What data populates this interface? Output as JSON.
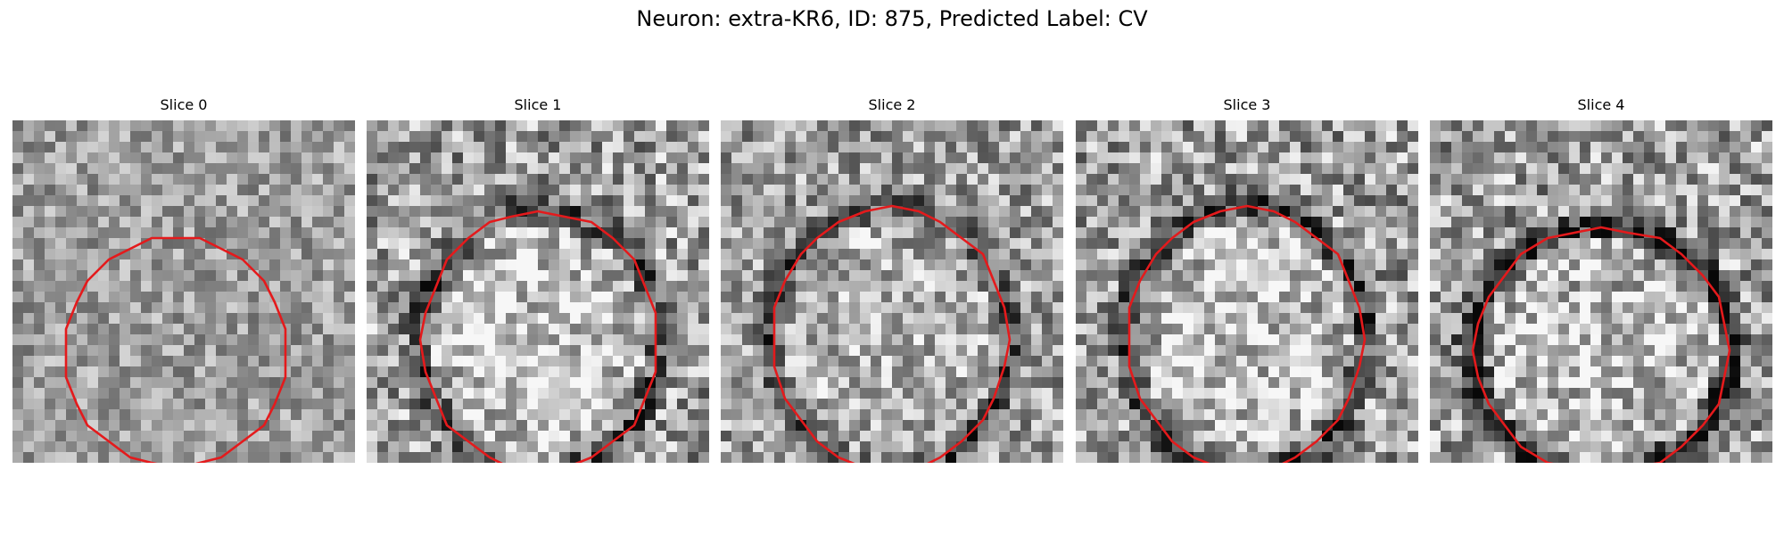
{
  "figure": {
    "title": "Neuron: extra-KR6, ID: 875, Predicted Label: CV",
    "contour_color": "#e41a1c",
    "colormap": "gray",
    "panels": [
      {
        "label": "Slice 0",
        "seed": 11,
        "contrast": "low",
        "disk": 0.0,
        "ring": 0.0
      },
      {
        "label": "Slice 1",
        "seed": 23,
        "contrast": "high",
        "disk": 0.55,
        "ring": 0.35
      },
      {
        "label": "Slice 2",
        "seed": 37,
        "contrast": "medium",
        "disk": 0.25,
        "ring": 0.35
      },
      {
        "label": "Slice 3",
        "seed": 51,
        "contrast": "high",
        "disk": 0.45,
        "ring": 0.45
      },
      {
        "label": "Slice 4",
        "seed": 67,
        "contrast": "high",
        "disk": 0.45,
        "ring": 0.55
      }
    ]
  }
}
